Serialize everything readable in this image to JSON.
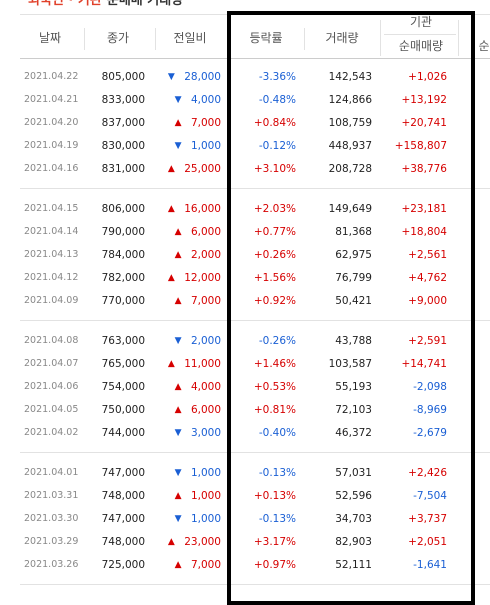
{
  "title": {
    "highlight": "외국인 · 기관",
    "rest": "순매매 거래량"
  },
  "headers": {
    "date": "날짜",
    "close": "종가",
    "change": "전일비",
    "rate": "등락률",
    "volume": "거래량",
    "inst_group": "기관",
    "inst": "순매매량",
    "foreign_cut": "순"
  },
  "groups": [
    [
      {
        "date": "2021.04.22",
        "close": "805,000",
        "arrow": "▼",
        "change": "28,000",
        "rate": "-3.36%",
        "volume": "142,543",
        "inst": "+1,026"
      },
      {
        "date": "2021.04.21",
        "close": "833,000",
        "arrow": "▼",
        "change": "4,000",
        "rate": "-0.48%",
        "volume": "124,866",
        "inst": "+13,192"
      },
      {
        "date": "2021.04.20",
        "close": "837,000",
        "arrow": "▲",
        "change": "7,000",
        "rate": "+0.84%",
        "volume": "108,759",
        "inst": "+20,741"
      },
      {
        "date": "2021.04.19",
        "close": "830,000",
        "arrow": "▼",
        "change": "1,000",
        "rate": "-0.12%",
        "volume": "448,937",
        "inst": "+158,807"
      },
      {
        "date": "2021.04.16",
        "close": "831,000",
        "arrow": "▲",
        "change": "25,000",
        "rate": "+3.10%",
        "volume": "208,728",
        "inst": "+38,776"
      }
    ],
    [
      {
        "date": "2021.04.15",
        "close": "806,000",
        "arrow": "▲",
        "change": "16,000",
        "rate": "+2.03%",
        "volume": "149,649",
        "inst": "+23,181"
      },
      {
        "date": "2021.04.14",
        "close": "790,000",
        "arrow": "▲",
        "change": "6,000",
        "rate": "+0.77%",
        "volume": "81,368",
        "inst": "+18,804"
      },
      {
        "date": "2021.04.13",
        "close": "784,000",
        "arrow": "▲",
        "change": "2,000",
        "rate": "+0.26%",
        "volume": "62,975",
        "inst": "+2,561"
      },
      {
        "date": "2021.04.12",
        "close": "782,000",
        "arrow": "▲",
        "change": "12,000",
        "rate": "+1.56%",
        "volume": "76,799",
        "inst": "+4,762"
      },
      {
        "date": "2021.04.09",
        "close": "770,000",
        "arrow": "▲",
        "change": "7,000",
        "rate": "+0.92%",
        "volume": "50,421",
        "inst": "+9,000"
      }
    ],
    [
      {
        "date": "2021.04.08",
        "close": "763,000",
        "arrow": "▼",
        "change": "2,000",
        "rate": "-0.26%",
        "volume": "43,788",
        "inst": "+2,591"
      },
      {
        "date": "2021.04.07",
        "close": "765,000",
        "arrow": "▲",
        "change": "11,000",
        "rate": "+1.46%",
        "volume": "103,587",
        "inst": "+14,741"
      },
      {
        "date": "2021.04.06",
        "close": "754,000",
        "arrow": "▲",
        "change": "4,000",
        "rate": "+0.53%",
        "volume": "55,193",
        "inst": "-2,098"
      },
      {
        "date": "2021.04.05",
        "close": "750,000",
        "arrow": "▲",
        "change": "6,000",
        "rate": "+0.81%",
        "volume": "72,103",
        "inst": "-8,969"
      },
      {
        "date": "2021.04.02",
        "close": "744,000",
        "arrow": "▼",
        "change": "3,000",
        "rate": "-0.40%",
        "volume": "46,372",
        "inst": "-2,679"
      }
    ],
    [
      {
        "date": "2021.04.01",
        "close": "747,000",
        "arrow": "▼",
        "change": "1,000",
        "rate": "-0.13%",
        "volume": "57,031",
        "inst": "+2,426"
      },
      {
        "date": "2021.03.31",
        "close": "748,000",
        "arrow": "▲",
        "change": "1,000",
        "rate": "+0.13%",
        "volume": "52,596",
        "inst": "-7,504"
      },
      {
        "date": "2021.03.30",
        "close": "747,000",
        "arrow": "▼",
        "change": "1,000",
        "rate": "-0.13%",
        "volume": "34,703",
        "inst": "+3,737"
      },
      {
        "date": "2021.03.29",
        "close": "748,000",
        "arrow": "▲",
        "change": "23,000",
        "rate": "+3.17%",
        "volume": "82,903",
        "inst": "+2,051"
      },
      {
        "date": "2021.03.26",
        "close": "725,000",
        "arrow": "▲",
        "change": "7,000",
        "rate": "+0.97%",
        "volume": "52,111",
        "inst": "-1,641"
      }
    ]
  ]
}
